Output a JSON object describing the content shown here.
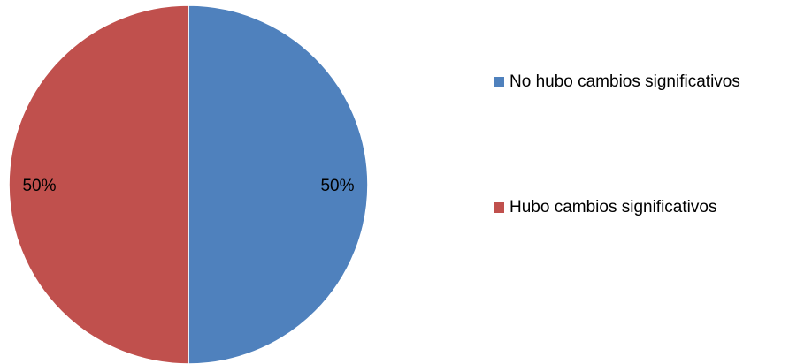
{
  "chart_data": {
    "type": "pie",
    "categories": [
      "No hubo cambios significativos",
      "Hubo cambios significativos"
    ],
    "values": [
      50,
      50
    ],
    "value_labels": [
      "50%",
      "50%"
    ],
    "colors": [
      "#4f81bd",
      "#c0504d"
    ],
    "start_angle": "12 o'clock",
    "direction": "clockwise",
    "legend_position": "right"
  }
}
